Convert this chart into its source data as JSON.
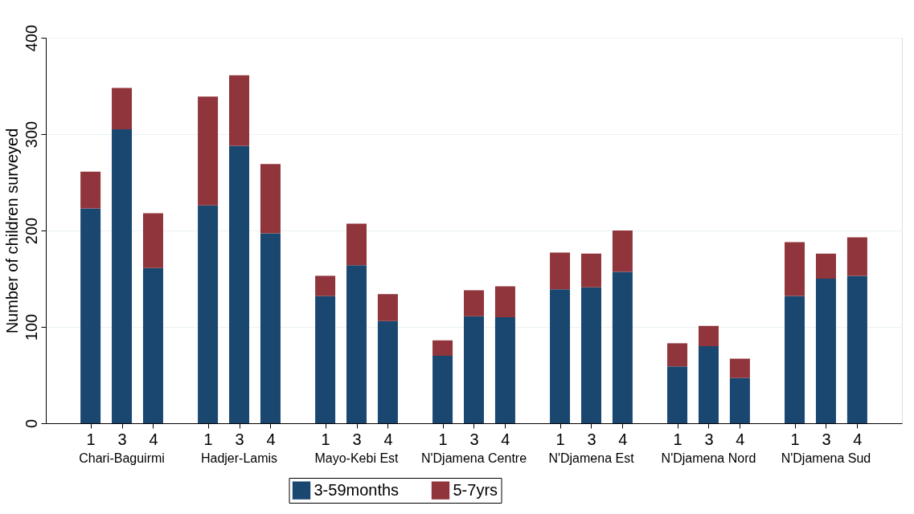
{
  "chart_data": {
    "type": "bar",
    "stacked": true,
    "ylabel": "Number of children surveyed",
    "categories": [
      "1",
      "3",
      "4",
      "1",
      "3",
      "4",
      "1",
      "3",
      "4",
      "1",
      "3",
      "4",
      "1",
      "3",
      "4",
      "1",
      "3",
      "4",
      "1",
      "3",
      "4"
    ],
    "annotations": [
      "Chari-Baguirmi",
      "Hadjer-Lamis",
      "Mayo-Kebi Est",
      "N'Djamena Centre",
      "N'Djamena Est",
      "N'Djamena Nord",
      "N'Djamena Sud"
    ],
    "series": [
      {
        "name": "3-59months",
        "color": "#1a476f",
        "values": [
          223,
          305,
          161,
          226,
          288,
          197,
          132,
          164,
          106,
          70,
          111,
          110,
          139,
          141,
          157,
          59,
          80,
          47,
          132,
          150,
          153
        ]
      },
      {
        "name": "5-7yrs",
        "color": "#90353b",
        "values": [
          38,
          43,
          57,
          113,
          73,
          72,
          21,
          43,
          28,
          16,
          27,
          32,
          38,
          35,
          43,
          24,
          21,
          20,
          56,
          26,
          40
        ]
      }
    ],
    "ylim": [
      0,
      400
    ],
    "yticks": [
      0,
      100,
      200,
      300,
      400
    ],
    "grid": "y",
    "legend": "bottom"
  }
}
